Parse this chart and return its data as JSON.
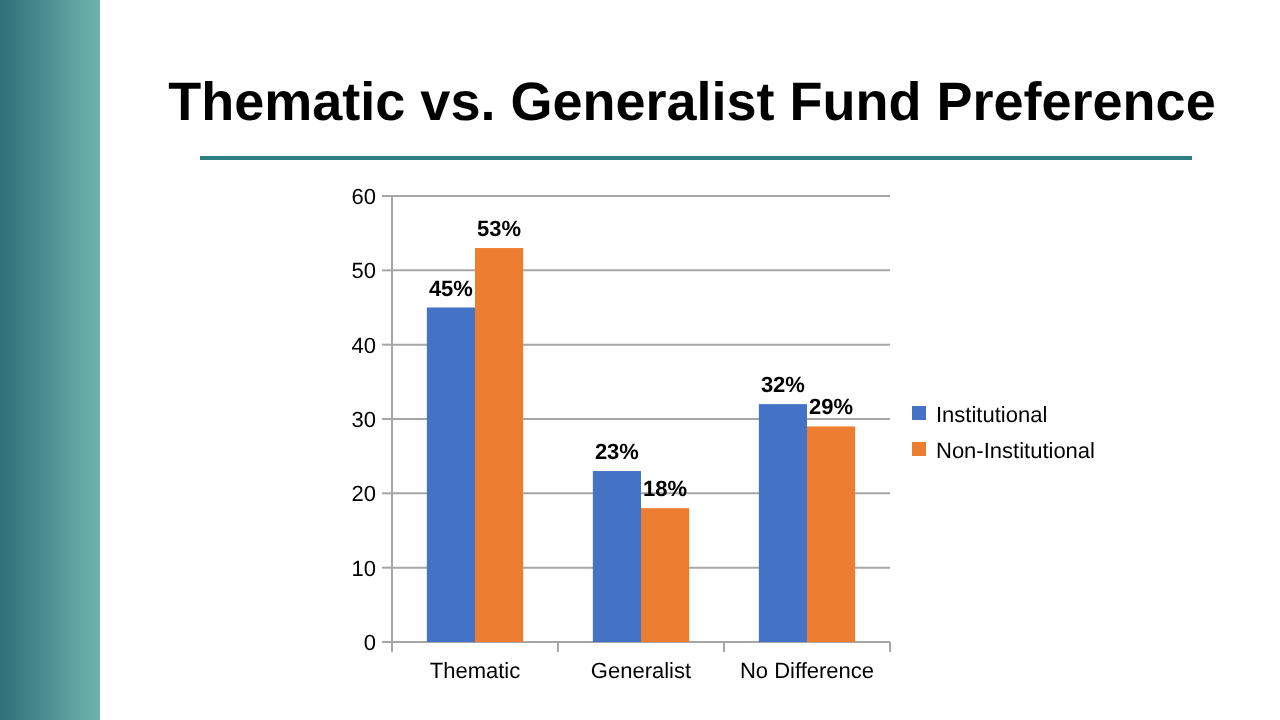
{
  "chart_data": {
    "type": "bar",
    "title": "Thematic vs. Generalist Fund Preference",
    "categories": [
      "Thematic",
      "Generalist",
      "No Difference"
    ],
    "series": [
      {
        "name": "Institutional",
        "color": "#4472c4",
        "values": [
          45,
          23,
          32
        ],
        "value_labels": [
          "45%",
          "23%",
          "32%"
        ]
      },
      {
        "name": "Non-Institutional",
        "color": "#ed7d31",
        "values": [
          53,
          18,
          29
        ],
        "value_labels": [
          "53%",
          "18%",
          "29%"
        ]
      }
    ],
    "ylim": [
      0,
      60
    ],
    "yticks": [
      0,
      10,
      20,
      30,
      40,
      50,
      60
    ],
    "grid": "y",
    "legend": "right"
  }
}
